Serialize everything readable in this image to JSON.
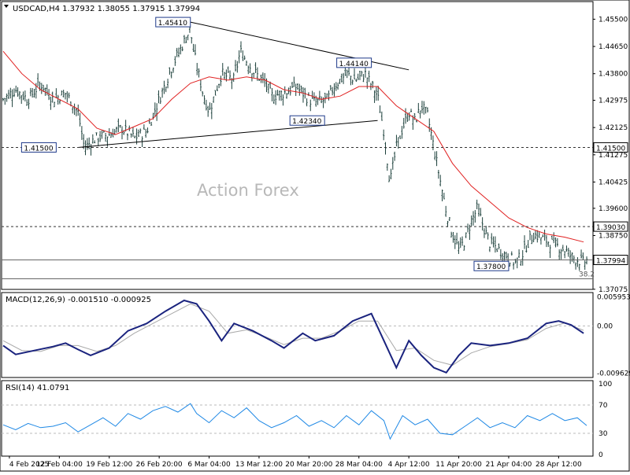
{
  "chart_data": [
    {
      "type": "candlestick",
      "symbol_line": "USDCAD,H4  1.37932 1.38055 1.37915 1.37994",
      "watermark": "Action Forex",
      "ylim": [
        1.3707,
        1.4605
      ],
      "price_ticks": [
        1.455,
        1.4465,
        1.438,
        1.4297,
        1.4212,
        1.4127,
        1.4042,
        1.396,
        1.3875,
        1.37075
      ],
      "price_tick_labels": [
        "1.45500",
        "1.44650",
        "1.43800",
        "1.42975",
        "1.42125",
        "1.41275",
        "1.40425",
        "1.39600",
        "1.38750",
        "1.37075"
      ],
      "x_labels": [
        "4 Feb 2025",
        "12 Feb 04:00",
        "19 Feb 12:00",
        "26 Feb 20:00",
        "6 Mar 04:00",
        "13 Mar 12:00",
        "20 Mar 20:00",
        "28 Mar 04:00",
        "4 Apr 12:00",
        "11 Apr 20:00",
        "21 Apr 04:00",
        "28 Apr 12:00"
      ],
      "close_path": [
        [
          0,
          1.43
        ],
        [
          4,
          1.433
        ],
        [
          8,
          1.43
        ],
        [
          12,
          1.435
        ],
        [
          16,
          1.43
        ],
        [
          20,
          1.432
        ],
        [
          24,
          1.426
        ],
        [
          26,
          1.415
        ],
        [
          30,
          1.418
        ],
        [
          34,
          1.419
        ],
        [
          38,
          1.421
        ],
        [
          42,
          1.418
        ],
        [
          46,
          1.42
        ],
        [
          50,
          1.43
        ],
        [
          54,
          1.44
        ],
        [
          58,
          1.448
        ],
        [
          60,
          1.452
        ],
        [
          61,
          1.445
        ],
        [
          64,
          1.432
        ],
        [
          66,
          1.426
        ],
        [
          70,
          1.438
        ],
        [
          74,
          1.436
        ],
        [
          76,
          1.445
        ],
        [
          80,
          1.439
        ],
        [
          84,
          1.435
        ],
        [
          86,
          1.431
        ],
        [
          90,
          1.432
        ],
        [
          94,
          1.434
        ],
        [
          98,
          1.43
        ],
        [
          100,
          1.429
        ],
        [
          104,
          1.43
        ],
        [
          106,
          1.434
        ],
        [
          110,
          1.438
        ],
        [
          113,
          1.436
        ],
        [
          116,
          1.438
        ],
        [
          120,
          1.431
        ],
        [
          122,
          1.42
        ],
        [
          124,
          1.404
        ],
        [
          126,
          1.415
        ],
        [
          128,
          1.421
        ],
        [
          130,
          1.426
        ],
        [
          132,
          1.423
        ],
        [
          134,
          1.428
        ],
        [
          136,
          1.425
        ],
        [
          138,
          1.415
        ],
        [
          140,
          1.405
        ],
        [
          142,
          1.395
        ],
        [
          144,
          1.388
        ],
        [
          146,
          1.383
        ],
        [
          148,
          1.386
        ],
        [
          150,
          1.392
        ],
        [
          152,
          1.396
        ],
        [
          154,
          1.39
        ],
        [
          156,
          1.385
        ],
        [
          158,
          1.384
        ],
        [
          160,
          1.382
        ],
        [
          162,
          1.381
        ],
        [
          164,
          1.379
        ],
        [
          166,
          1.381
        ],
        [
          168,
          1.385
        ],
        [
          170,
          1.388
        ],
        [
          172,
          1.387
        ],
        [
          174,
          1.386
        ],
        [
          176,
          1.385
        ],
        [
          178,
          1.384
        ],
        [
          180,
          1.383
        ],
        [
          182,
          1.381
        ],
        [
          184,
          1.38
        ],
        [
          186,
          1.379
        ],
        [
          187,
          1.3799
        ]
      ],
      "moving_average": [
        [
          0,
          1.445
        ],
        [
          6,
          1.438
        ],
        [
          12,
          1.433
        ],
        [
          18,
          1.43
        ],
        [
          24,
          1.427
        ],
        [
          30,
          1.421
        ],
        [
          36,
          1.419
        ],
        [
          42,
          1.4215
        ],
        [
          48,
          1.424
        ],
        [
          54,
          1.43
        ],
        [
          60,
          1.435
        ],
        [
          66,
          1.437
        ],
        [
          72,
          1.436
        ],
        [
          78,
          1.437
        ],
        [
          84,
          1.436
        ],
        [
          90,
          1.433
        ],
        [
          96,
          1.432
        ],
        [
          102,
          1.43
        ],
        [
          108,
          1.431
        ],
        [
          114,
          1.434
        ],
        [
          120,
          1.434
        ],
        [
          126,
          1.428
        ],
        [
          132,
          1.424
        ],
        [
          138,
          1.42
        ],
        [
          144,
          1.41
        ],
        [
          150,
          1.403
        ],
        [
          156,
          1.398
        ],
        [
          162,
          1.393
        ],
        [
          168,
          1.39
        ],
        [
          174,
          1.388
        ],
        [
          180,
          1.387
        ],
        [
          186,
          1.3855
        ]
      ],
      "trendlines": [
        {
          "from": [
            24,
            1.415
          ],
          "to": [
            120,
            1.4234
          ]
        },
        {
          "from": [
            60,
            1.4541
          ],
          "to": [
            130,
            1.4392
          ]
        }
      ],
      "horizontal_levels": [
        {
          "value": 1.415,
          "label": "1.41500",
          "style": "dashed"
        },
        {
          "value": 1.3903,
          "label": "1.39030",
          "style": "dashed"
        },
        {
          "value": 1.3799,
          "label": "1.37994",
          "style": "solid"
        },
        {
          "value": 1.374,
          "label": "38.2",
          "style": "solid"
        }
      ],
      "annotations": [
        {
          "label": "1.45410",
          "x": 60,
          "y": 1.4541
        },
        {
          "label": "1.44140",
          "x": 118,
          "y": 1.4414
        },
        {
          "label": "1.42340",
          "x": 103,
          "y": 1.4234
        },
        {
          "label": "1.41500",
          "x": 17,
          "y": 1.415
        },
        {
          "label": "1.37800",
          "x": 162,
          "y": 1.378
        }
      ]
    },
    {
      "type": "line",
      "title": "MACD(12,26,9) -0.001510 -0.000925",
      "ylim": [
        -0.0105,
        0.0068
      ],
      "tick_labels": [
        "0.005953",
        "0.00",
        "-0.009629"
      ],
      "tick_values": [
        0.005953,
        0.0,
        -0.009629
      ],
      "series": [
        {
          "name": "MACD",
          "values": [
            [
              0,
              -0.004
            ],
            [
              4,
              -0.0058
            ],
            [
              10,
              -0.005
            ],
            [
              16,
              -0.0042
            ],
            [
              20,
              -0.0035
            ],
            [
              24,
              -0.0048
            ],
            [
              28,
              -0.006
            ],
            [
              34,
              -0.0045
            ],
            [
              40,
              -0.001
            ],
            [
              46,
              0.0005
            ],
            [
              52,
              0.003
            ],
            [
              58,
              0.0052
            ],
            [
              62,
              0.0045
            ],
            [
              66,
              0.001
            ],
            [
              70,
              -0.003
            ],
            [
              74,
              0.0005
            ],
            [
              80,
              -0.001
            ],
            [
              86,
              -0.003
            ],
            [
              90,
              -0.0045
            ],
            [
              96,
              -0.0015
            ],
            [
              100,
              -0.003
            ],
            [
              106,
              -0.002
            ],
            [
              112,
              0.001
            ],
            [
              118,
              0.0025
            ],
            [
              122,
              -0.003
            ],
            [
              126,
              -0.0085
            ],
            [
              130,
              -0.003
            ],
            [
              134,
              -0.006
            ],
            [
              138,
              -0.0085
            ],
            [
              142,
              -0.0095
            ],
            [
              146,
              -0.006
            ],
            [
              150,
              -0.0035
            ],
            [
              156,
              -0.004
            ],
            [
              162,
              -0.0035
            ],
            [
              168,
              -0.0025
            ],
            [
              174,
              0.0005
            ],
            [
              178,
              0.001
            ],
            [
              182,
              0.0002
            ],
            [
              186,
              -0.0015
            ]
          ]
        },
        {
          "name": "Signal",
          "values": [
            [
              0,
              -0.003
            ],
            [
              6,
              -0.005
            ],
            [
              12,
              -0.0052
            ],
            [
              18,
              -0.004
            ],
            [
              24,
              -0.004
            ],
            [
              30,
              -0.0052
            ],
            [
              36,
              -0.004
            ],
            [
              42,
              -0.0015
            ],
            [
              48,
              0.0005
            ],
            [
              54,
              0.0025
            ],
            [
              60,
              0.0045
            ],
            [
              66,
              0.003
            ],
            [
              72,
              -0.0015
            ],
            [
              78,
              -0.0008
            ],
            [
              84,
              -0.0022
            ],
            [
              90,
              -0.0038
            ],
            [
              96,
              -0.0025
            ],
            [
              102,
              -0.0025
            ],
            [
              108,
              -0.001
            ],
            [
              114,
              0.001
            ],
            [
              120,
              0.001
            ],
            [
              126,
              -0.005
            ],
            [
              132,
              -0.0045
            ],
            [
              138,
              -0.007
            ],
            [
              144,
              -0.008
            ],
            [
              150,
              -0.0055
            ],
            [
              156,
              -0.0042
            ],
            [
              162,
              -0.0036
            ],
            [
              168,
              -0.0028
            ],
            [
              174,
              -0.0005
            ],
            [
              180,
              0.0006
            ],
            [
              186,
              -0.0009
            ]
          ]
        }
      ]
    },
    {
      "type": "line",
      "title": "RSI(14) 41.0791",
      "ylim": [
        0,
        100
      ],
      "tick_labels": [
        "100",
        "70",
        "30",
        "0"
      ],
      "tick_values": [
        100,
        70,
        30,
        0
      ],
      "series": [
        {
          "name": "RSI",
          "values": [
            [
              0,
              42
            ],
            [
              4,
              35
            ],
            [
              8,
              44
            ],
            [
              12,
              38
            ],
            [
              16,
              40
            ],
            [
              20,
              45
            ],
            [
              24,
              32
            ],
            [
              28,
              42
            ],
            [
              32,
              52
            ],
            [
              36,
              40
            ],
            [
              40,
              58
            ],
            [
              44,
              50
            ],
            [
              48,
              62
            ],
            [
              52,
              68
            ],
            [
              56,
              60
            ],
            [
              60,
              72
            ],
            [
              62,
              58
            ],
            [
              66,
              45
            ],
            [
              70,
              62
            ],
            [
              74,
              52
            ],
            [
              78,
              66
            ],
            [
              82,
              48
            ],
            [
              86,
              38
            ],
            [
              90,
              45
            ],
            [
              94,
              55
            ],
            [
              98,
              40
            ],
            [
              102,
              48
            ],
            [
              106,
              38
            ],
            [
              110,
              55
            ],
            [
              114,
              42
            ],
            [
              118,
              62
            ],
            [
              122,
              48
            ],
            [
              124,
              22
            ],
            [
              128,
              55
            ],
            [
              132,
              42
            ],
            [
              136,
              50
            ],
            [
              140,
              30
            ],
            [
              144,
              28
            ],
            [
              148,
              40
            ],
            [
              152,
              52
            ],
            [
              156,
              38
            ],
            [
              160,
              45
            ],
            [
              164,
              38
            ],
            [
              168,
              55
            ],
            [
              172,
              48
            ],
            [
              176,
              58
            ],
            [
              180,
              48
            ],
            [
              184,
              52
            ],
            [
              187,
              41
            ]
          ]
        }
      ]
    }
  ]
}
